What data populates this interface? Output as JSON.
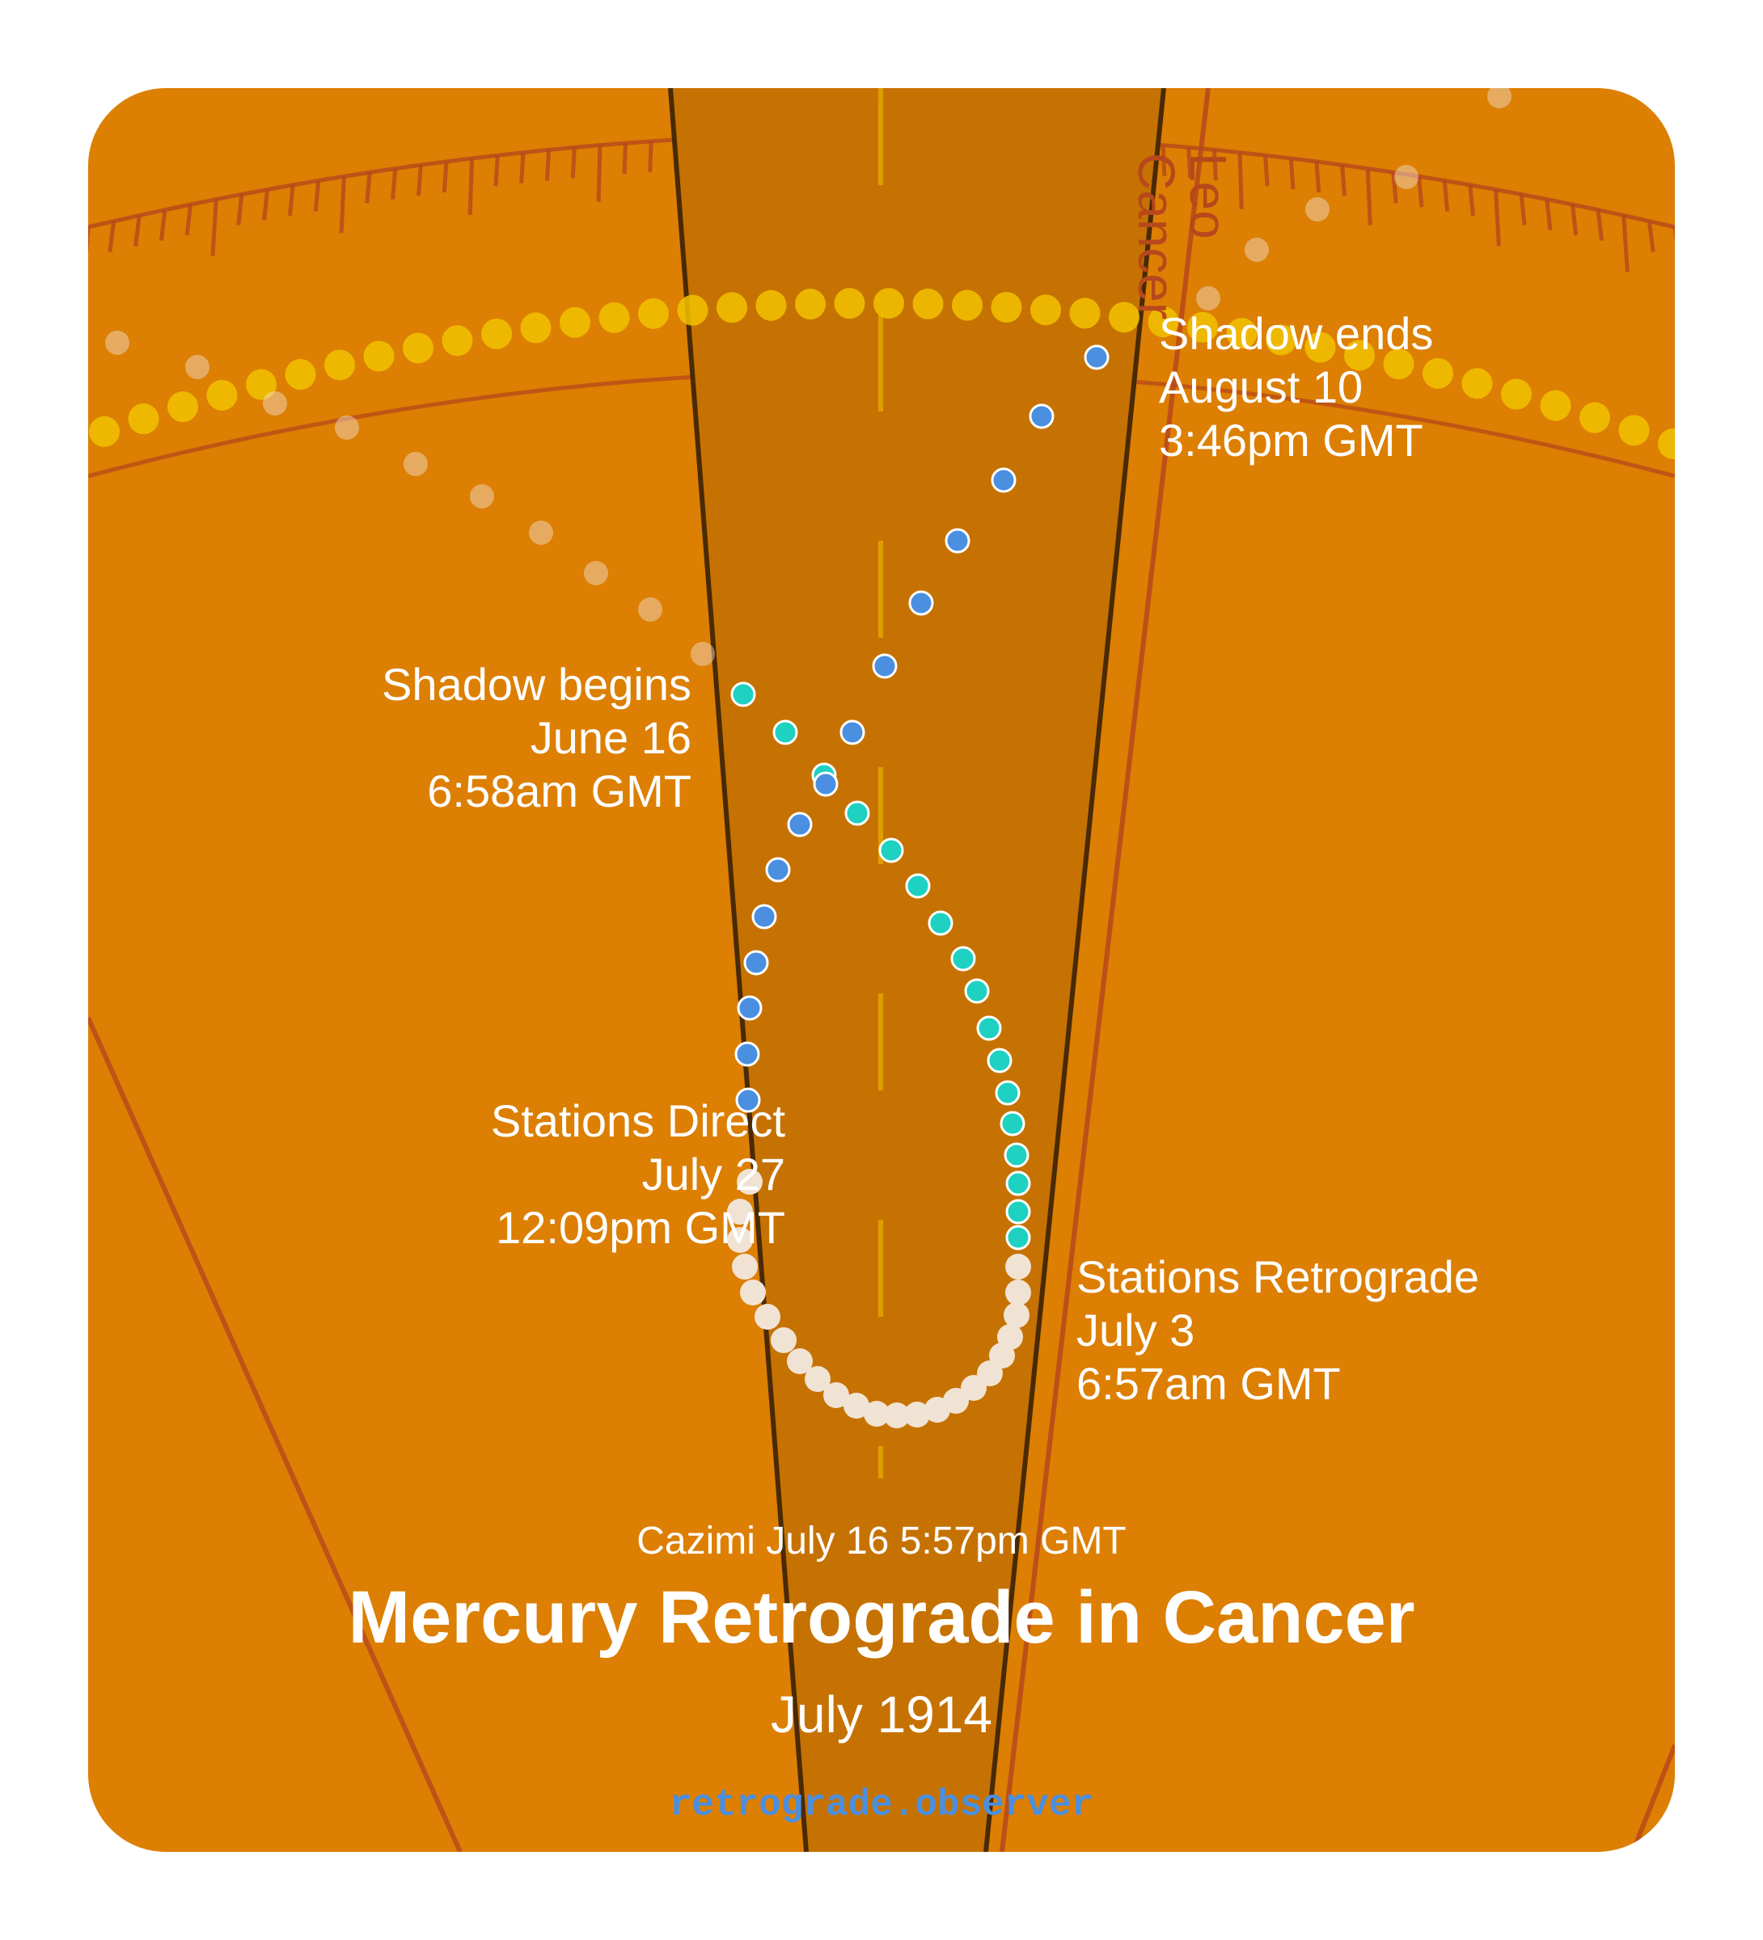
{
  "zodiac": {
    "sign_next": "Leo",
    "sign_current": "Cancer"
  },
  "events": {
    "shadow_begins": [
      "Shadow begins",
      "June 16",
      "6:58am GMT"
    ],
    "stations_retrograde": [
      "Stations Retrograde",
      "July 3",
      "6:57am GMT"
    ],
    "stations_direct": [
      "Stations Direct",
      "July 27",
      "12:09pm GMT"
    ],
    "shadow_ends": [
      "Shadow ends",
      "August 10",
      "3:46pm GMT"
    ]
  },
  "cazimi": "Cazimi July 16 5:57pm GMT",
  "title": "Mercury Retrograde in Cancer",
  "subtitle": "July 1914",
  "site": "retrograde.observer",
  "colors": {
    "background": "#dc7f03",
    "band": "#c67202",
    "pre_shadow": "#1ed1c1",
    "retrograde": "#f1e3d4",
    "post_shadow": "#4a8fe0",
    "sun_path": "#f2c200",
    "wheel": "#b8471b"
  }
}
